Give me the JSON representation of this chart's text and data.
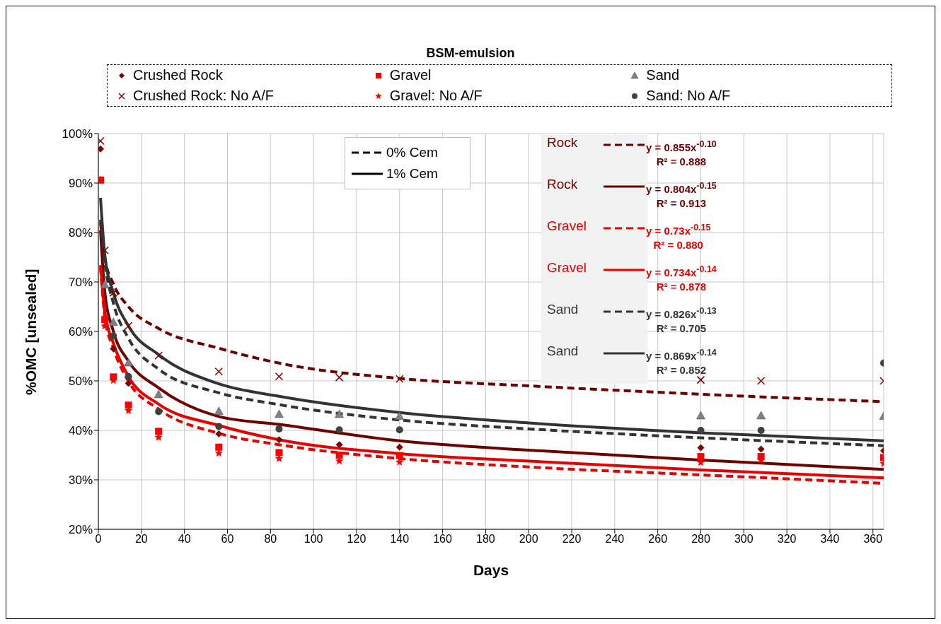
{
  "chart_data": {
    "type": "scatter",
    "title": "BSM-emulsion",
    "xlabel": "Days",
    "ylabel": "%OMC [unsealed]",
    "x": [
      1,
      3,
      7,
      14,
      28,
      56,
      84,
      112,
      140,
      280,
      308,
      365
    ],
    "series": [
      {
        "name": "Crushed Rock",
        "color": "#800000",
        "marker": "diamond",
        "values": [
          96.9,
          null,
          56.5,
          49.5,
          null,
          39.3,
          38.1,
          37.1,
          36.6,
          36.5,
          36.2,
          35.9
        ]
      },
      {
        "name": "Gravel",
        "color": "#ff0000",
        "marker": "square",
        "values": [
          90.6,
          62.4,
          50.8,
          45.1,
          39.8,
          36.6,
          35.5,
          35.0,
          34.9,
          34.7,
          34.7,
          34.5
        ]
      },
      {
        "name": "Sand",
        "color": "#808080",
        "marker": "triangle",
        "values": [
          null,
          69.5,
          61.9,
          53.7,
          47.3,
          43.9,
          43.3,
          43.3,
          42.9,
          43.0,
          43.0,
          42.9
        ]
      },
      {
        "name": "Crushed Rock: No A/F",
        "color": "#800000",
        "marker": "cross",
        "values": [
          98.5,
          76.4,
          67.8,
          61.1,
          55.1,
          51.9,
          50.9,
          50.7,
          50.4,
          50.2,
          50.0,
          50.0
        ]
      },
      {
        "name": "Gravel: No A/F",
        "color": "#ff0000",
        "marker": "star",
        "values": [
          90.6,
          61.1,
          50.1,
          44.0,
          38.6,
          35.4,
          34.3,
          33.8,
          33.6,
          33.5,
          34.0,
          33.3
        ]
      },
      {
        "name": "Sand: No A/F",
        "color": "#404040",
        "marker": "circle",
        "values": [
          null,
          null,
          59.1,
          50.9,
          43.8,
          40.8,
          40.3,
          40.1,
          40.1,
          40.0,
          40.0,
          53.6
        ]
      },
      {
        "name": "Rock",
        "type": "line",
        "line_style": "dashed",
        "color": "#6e0000",
        "x": [
          1,
          3,
          7,
          14,
          28,
          56,
          84,
          140,
          200,
          280,
          365
        ],
        "values": [
          82,
          74.9,
          69.6,
          65,
          60.6,
          56.6,
          53.6,
          50.5,
          49,
          47.3,
          45.8
        ]
      },
      {
        "name": "Rock",
        "type": "line",
        "line_style": "solid",
        "color": "#6e0000",
        "x": [
          1,
          3,
          7,
          14,
          28,
          56,
          84,
          140,
          200,
          280,
          365
        ],
        "values": [
          80.5,
          68,
          60,
          54,
          48.6,
          42.8,
          41.2,
          37.9,
          36,
          34,
          32.1
        ]
      },
      {
        "name": "Gravel",
        "type": "line",
        "line_style": "dashed",
        "color": "#e80000",
        "x": [
          1,
          3,
          7,
          14,
          28,
          56,
          84,
          140,
          200,
          280,
          365
        ],
        "values": [
          73,
          63,
          56.6,
          49.9,
          44.3,
          39.4,
          37.1,
          34.3,
          32.6,
          31,
          29.3
        ]
      },
      {
        "name": "Gravel",
        "type": "line",
        "line_style": "solid",
        "color": "#e80000",
        "x": [
          1,
          3,
          7,
          14,
          28,
          56,
          84,
          140,
          200,
          280,
          365
        ],
        "values": [
          73.4,
          64,
          57.6,
          50.9,
          45.3,
          41,
          38.1,
          35.3,
          33.8,
          32,
          30.4
        ]
      },
      {
        "name": "Sand",
        "type": "line",
        "line_style": "dashed",
        "color": "#333333",
        "x": [
          1,
          3,
          7,
          14,
          28,
          56,
          84,
          140,
          200,
          280,
          365
        ],
        "values": [
          82.6,
          74,
          65.7,
          58.6,
          52.4,
          47.6,
          45.2,
          42.1,
          40.3,
          38.5,
          36.9
        ]
      },
      {
        "name": "Sand",
        "type": "line",
        "line_style": "solid",
        "color": "#333333",
        "x": [
          1,
          3,
          7,
          14,
          28,
          56,
          84,
          140,
          200,
          280,
          365
        ],
        "values": [
          87,
          75.5,
          67.8,
          61.1,
          55.3,
          49.4,
          46.9,
          43.6,
          41.5,
          39.5,
          37.9
        ]
      }
    ],
    "annotations": [
      "0% Cem",
      "1% Cem",
      "y = 0.855x$^{-0.10}$",
      "R² = 0.888",
      "y = 0.804x$^{-0.15}$",
      "R² = 0.913",
      "y = 0.73x$^{-0.15}$",
      "R² = 0.880",
      "y = 0.734x$^{-0.14}$",
      "R² = 0.878",
      "y = 0.826x$^{-0.13}$",
      "R² = 0.705",
      "y = 0.869x$^{-0.14}$",
      "R² = 0.852"
    ],
    "xlim": [
      0,
      365
    ],
    "xticks": [
      0,
      20,
      40,
      60,
      80,
      100,
      120,
      140,
      160,
      180,
      200,
      220,
      240,
      260,
      280,
      300,
      320,
      340,
      360
    ],
    "ylim": [
      20,
      100
    ],
    "yticks": [
      {
        "value": 20,
        "label": "20%"
      },
      {
        "value": 30,
        "label": "30%"
      },
      {
        "value": 40,
        "label": "40%"
      },
      {
        "value": 50,
        "label": "50%"
      },
      {
        "value": 60,
        "label": "60%"
      },
      {
        "value": 70,
        "label": "70%"
      },
      {
        "value": 80,
        "label": "80%"
      },
      {
        "value": 90,
        "label": "90%"
      },
      {
        "value": 100,
        "label": "100%"
      }
    ],
    "grid": true,
    "legend": "top"
  }
}
